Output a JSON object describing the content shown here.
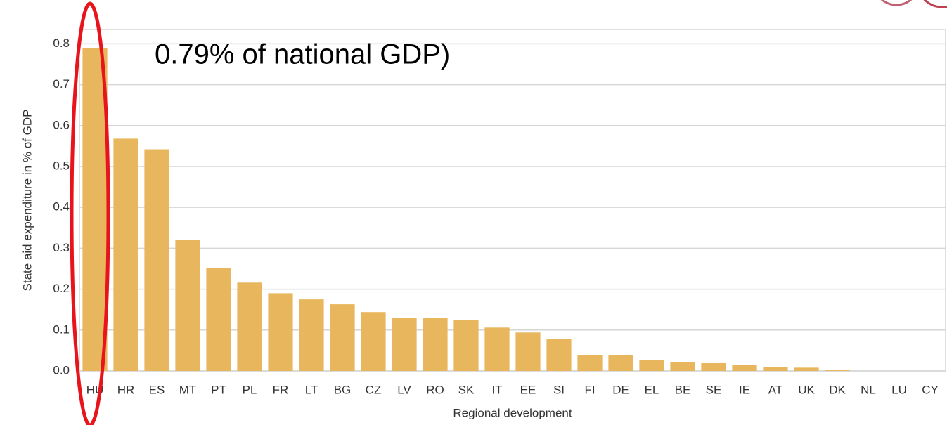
{
  "chart_data": {
    "type": "bar",
    "annotation": "0.79% of national GDP)",
    "y_label": "State aid expenditure in % of GDP",
    "x_label": "Regional development",
    "categories": [
      "HU",
      "HR",
      "ES",
      "MT",
      "PT",
      "PL",
      "FR",
      "LT",
      "BG",
      "CZ",
      "LV",
      "RO",
      "SK",
      "IT",
      "EE",
      "SI",
      "FI",
      "DE",
      "EL",
      "BE",
      "SE",
      "IE",
      "AT",
      "UK",
      "DK",
      "NL",
      "LU",
      "CY"
    ],
    "values": [
      0.79,
      0.568,
      0.542,
      0.321,
      0.252,
      0.216,
      0.19,
      0.175,
      0.163,
      0.144,
      0.13,
      0.13,
      0.125,
      0.106,
      0.094,
      0.079,
      0.038,
      0.038,
      0.026,
      0.022,
      0.019,
      0.015,
      0.009,
      0.008,
      0.002,
      0,
      0,
      0
    ],
    "color": "#e8b65c",
    "ylim": [
      0,
      0.835
    ],
    "yticks": [
      {
        "value": 0,
        "label": "0.0"
      },
      0.1,
      0.2,
      0.3,
      0.4,
      0.5,
      0.6,
      0.7,
      0.8
    ],
    "grid": true
  }
}
